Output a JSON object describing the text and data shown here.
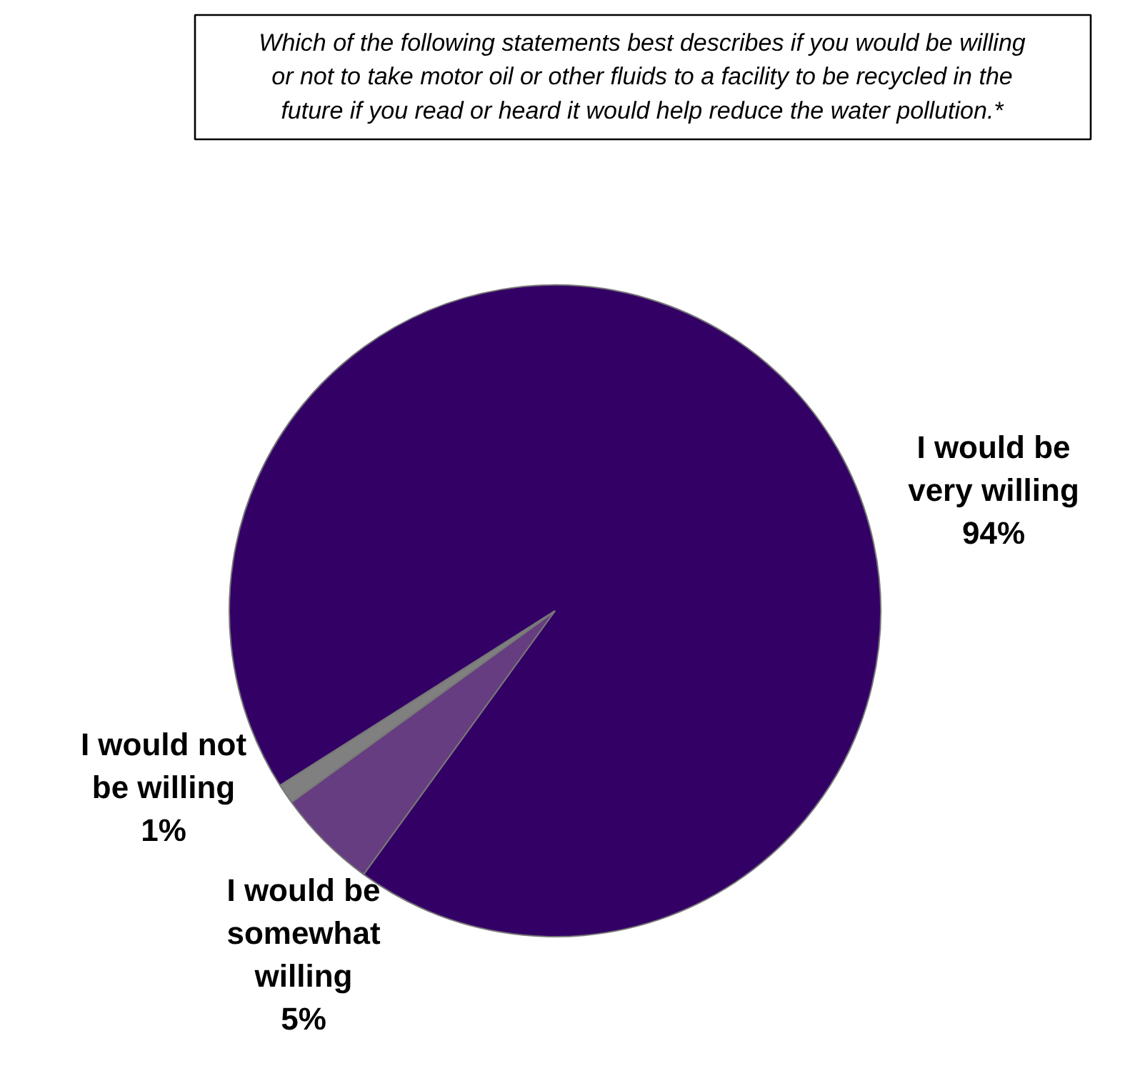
{
  "chart_data": {
    "type": "pie",
    "title": "Which of the following statements best describes if you would be willing\nor not to take motor oil or other fluids to a facility to be recycled in the\nfuture if you read or heard it would help reduce the water pollution.*",
    "categories": [
      "I would be\nvery willing",
      "I would be\nsomewhat\nwilling",
      "I would not\nbe willing"
    ],
    "values": [
      94,
      5,
      1
    ],
    "colors": [
      "#330066",
      "#663d80",
      "#808080"
    ],
    "value_labels": [
      "94%",
      "5%",
      "1%"
    ]
  }
}
